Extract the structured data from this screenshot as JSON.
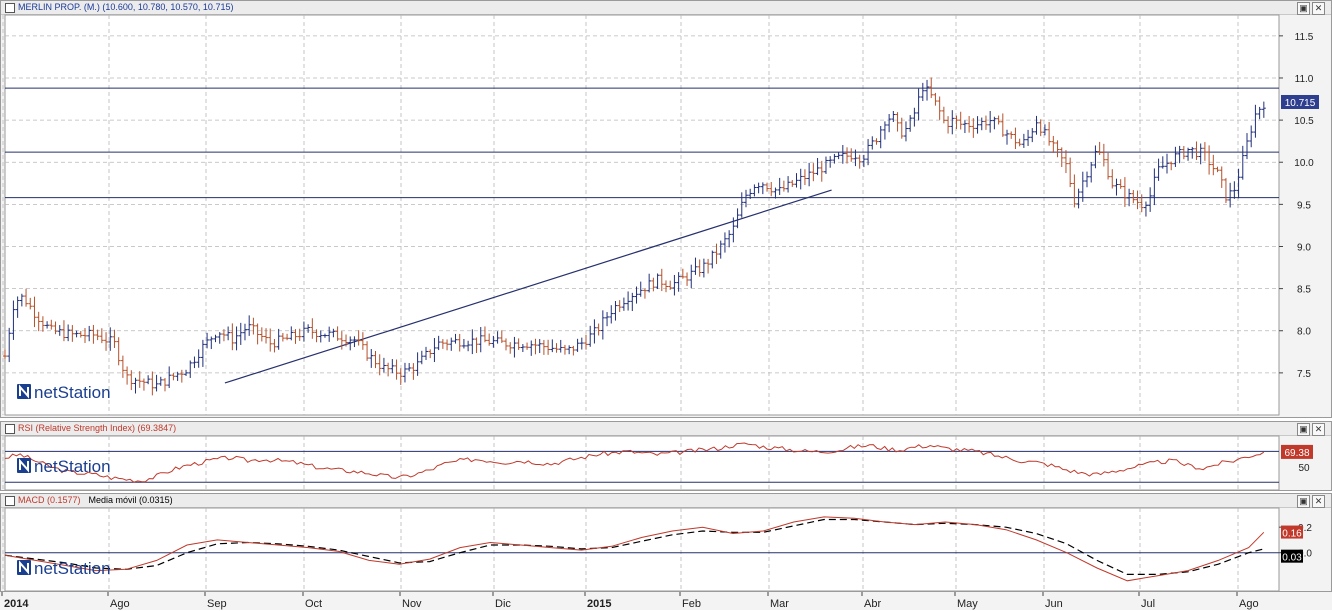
{
  "price_panel": {
    "header": "MERLIN PROP. (M.) (10.600, 10.780, 10.570, 10.715)",
    "last_label": "10.715",
    "logo": "netStation",
    "win_buttons": [
      "▣",
      "✕"
    ]
  },
  "rsi_panel": {
    "header": "RSI (Relative Strength Index) (69.3847)",
    "last_label": "69.38",
    "logo": "netStation",
    "win_buttons": [
      "▣",
      "✕"
    ]
  },
  "macd_panel": {
    "header": "MACD (0.1577)",
    "header_extra": "Media móvil (0.0315)",
    "last_label_macd": "0.16",
    "last_label_signal": "0.03",
    "logo": "netStation",
    "win_buttons": [
      "▣",
      "✕"
    ]
  },
  "colors": {
    "up": "#1f2f7a",
    "down": "#b5502a",
    "rsi_line": "#c0392b",
    "macd_line": "#c0392b",
    "signal_line": "#000000",
    "grid": "#b8b8b8",
    "hline": "#26306e",
    "label_blue": "#2e3f8f",
    "label_red": "#c0392b"
  },
  "chart_data": [
    {
      "type": "ohlc",
      "title": "MERLIN PROP. (M.)",
      "last_ohlc": {
        "open": 10.6,
        "high": 10.78,
        "low": 10.57,
        "close": 10.715
      },
      "ylim": [
        7.0,
        11.7
      ],
      "y_ticks": [
        7.5,
        8.0,
        8.5,
        9.0,
        9.5,
        10.0,
        10.5,
        11.0,
        11.5
      ],
      "x_ticks": [
        "2014",
        "Ago",
        "Sep",
        "Oct",
        "Nov",
        "Dic",
        "2015",
        "Feb",
        "Mar",
        "Abr",
        "May",
        "Jun",
        "Jul",
        "Ago"
      ],
      "horizontal_levels": [
        10.88,
        10.12,
        9.58
      ],
      "trendline": {
        "from": [
          0.145,
          7.38
        ],
        "to": [
          0.545,
          9.67
        ]
      },
      "anchors": [
        [
          0.0,
          7.7
        ],
        [
          0.006,
          8.35
        ],
        [
          0.012,
          8.4
        ],
        [
          0.02,
          8.2
        ],
        [
          0.03,
          8.0
        ],
        [
          0.045,
          7.95
        ],
        [
          0.06,
          7.95
        ],
        [
          0.072,
          7.85
        ],
        [
          0.08,
          7.45
        ],
        [
          0.09,
          7.4
        ],
        [
          0.1,
          7.35
        ],
        [
          0.11,
          7.45
        ],
        [
          0.12,
          7.55
        ],
        [
          0.13,
          7.8
        ],
        [
          0.14,
          8.0
        ],
        [
          0.15,
          7.9
        ],
        [
          0.16,
          8.05
        ],
        [
          0.175,
          7.85
        ],
        [
          0.185,
          7.9
        ],
        [
          0.2,
          8.0
        ],
        [
          0.215,
          7.95
        ],
        [
          0.23,
          7.9
        ],
        [
          0.24,
          7.7
        ],
        [
          0.25,
          7.55
        ],
        [
          0.262,
          7.5
        ],
        [
          0.272,
          7.6
        ],
        [
          0.285,
          7.85
        ],
        [
          0.3,
          7.88
        ],
        [
          0.315,
          7.88
        ],
        [
          0.33,
          7.85
        ],
        [
          0.345,
          7.85
        ],
        [
          0.36,
          7.8
        ],
        [
          0.37,
          7.75
        ],
        [
          0.38,
          7.85
        ],
        [
          0.39,
          8.0
        ],
        [
          0.4,
          8.25
        ],
        [
          0.41,
          8.4
        ],
        [
          0.42,
          8.5
        ],
        [
          0.43,
          8.6
        ],
        [
          0.44,
          8.55
        ],
        [
          0.45,
          8.65
        ],
        [
          0.46,
          8.75
        ],
        [
          0.47,
          8.95
        ],
        [
          0.48,
          9.2
        ],
        [
          0.488,
          9.6
        ],
        [
          0.495,
          9.75
        ],
        [
          0.5,
          9.75
        ],
        [
          0.51,
          9.65
        ],
        [
          0.52,
          9.75
        ],
        [
          0.53,
          9.85
        ],
        [
          0.54,
          9.95
        ],
        [
          0.55,
          10.05
        ],
        [
          0.56,
          10.1
        ],
        [
          0.565,
          10.05
        ],
        [
          0.575,
          10.3
        ],
        [
          0.58,
          10.5
        ],
        [
          0.585,
          10.55
        ],
        [
          0.59,
          10.35
        ],
        [
          0.595,
          10.4
        ],
        [
          0.6,
          10.6
        ],
        [
          0.605,
          10.9
        ],
        [
          0.61,
          10.8
        ],
        [
          0.615,
          10.65
        ],
        [
          0.62,
          10.45
        ],
        [
          0.625,
          10.5
        ],
        [
          0.63,
          10.45
        ],
        [
          0.64,
          10.45
        ],
        [
          0.65,
          10.5
        ],
        [
          0.66,
          10.35
        ],
        [
          0.67,
          10.2
        ],
        [
          0.675,
          10.3
        ],
        [
          0.68,
          10.5
        ],
        [
          0.69,
          10.2
        ],
        [
          0.7,
          9.95
        ],
        [
          0.705,
          9.55
        ],
        [
          0.71,
          9.75
        ],
        [
          0.715,
          9.95
        ],
        [
          0.72,
          10.15
        ],
        [
          0.725,
          10.0
        ],
        [
          0.73,
          9.75
        ],
        [
          0.74,
          9.6
        ],
        [
          0.75,
          9.5
        ],
        [
          0.755,
          9.6
        ],
        [
          0.76,
          9.9
        ],
        [
          0.77,
          10.05
        ],
        [
          0.78,
          10.15
        ],
        [
          0.79,
          10.1
        ],
        [
          0.8,
          9.85
        ],
        [
          0.805,
          9.6
        ],
        [
          0.81,
          9.65
        ],
        [
          0.815,
          9.95
        ],
        [
          0.82,
          10.3
        ],
        [
          0.825,
          10.6
        ],
        [
          0.83,
          10.7
        ]
      ]
    },
    {
      "type": "line",
      "title": "RSI (Relative Strength Index)",
      "last_value": 69.3847,
      "ylim": [
        20,
        90
      ],
      "y_ticks": [
        50
      ],
      "levels": [
        70,
        30
      ],
      "x": [
        0.0,
        0.01,
        0.02,
        0.03,
        0.04,
        0.05,
        0.06,
        0.07,
        0.08,
        0.09,
        0.1,
        0.11,
        0.12,
        0.13,
        0.14,
        0.15,
        0.16,
        0.17,
        0.18,
        0.19,
        0.2,
        0.21,
        0.22,
        0.23,
        0.24,
        0.25,
        0.26,
        0.27,
        0.28,
        0.29,
        0.3,
        0.31,
        0.32,
        0.33,
        0.34,
        0.35,
        0.36,
        0.37,
        0.38,
        0.39,
        0.4,
        0.41,
        0.42,
        0.43,
        0.44,
        0.45,
        0.46,
        0.47,
        0.48,
        0.49,
        0.5,
        0.51,
        0.52,
        0.53,
        0.54,
        0.55,
        0.56,
        0.57,
        0.58,
        0.59,
        0.6,
        0.61,
        0.62,
        0.63,
        0.64,
        0.65,
        0.66,
        0.67,
        0.68,
        0.69,
        0.7,
        0.71,
        0.72,
        0.73,
        0.74,
        0.75,
        0.76,
        0.77,
        0.78,
        0.79,
        0.8,
        0.81,
        0.82,
        0.83
      ],
      "values": [
        62,
        66,
        58,
        50,
        44,
        42,
        40,
        36,
        34,
        32,
        38,
        46,
        52,
        56,
        60,
        62,
        58,
        60,
        58,
        56,
        52,
        48,
        46,
        44,
        42,
        38,
        36,
        40,
        46,
        54,
        58,
        60,
        58,
        56,
        58,
        56,
        54,
        58,
        62,
        66,
        68,
        70,
        68,
        66,
        68,
        70,
        72,
        74,
        78,
        80,
        76,
        74,
        72,
        70,
        70,
        72,
        76,
        78,
        74,
        72,
        76,
        78,
        74,
        72,
        70,
        66,
        62,
        58,
        56,
        52,
        46,
        42,
        40,
        44,
        48,
        52,
        56,
        58,
        52,
        48,
        54,
        58,
        64,
        69
      ]
    },
    {
      "type": "line",
      "title": "MACD",
      "last_value": 0.1577,
      "signal_name": "Media móvil",
      "signal_last": 0.0315,
      "ylim": [
        -0.3,
        0.35
      ],
      "y_ticks": [
        0.0,
        0.2
      ],
      "zero_line": 0.0,
      "x": [
        0.0,
        0.02,
        0.04,
        0.06,
        0.08,
        0.1,
        0.12,
        0.14,
        0.16,
        0.18,
        0.2,
        0.22,
        0.24,
        0.26,
        0.28,
        0.3,
        0.32,
        0.34,
        0.36,
        0.38,
        0.4,
        0.42,
        0.44,
        0.46,
        0.48,
        0.5,
        0.52,
        0.54,
        0.56,
        0.58,
        0.6,
        0.62,
        0.64,
        0.66,
        0.68,
        0.7,
        0.72,
        0.74,
        0.76,
        0.78,
        0.8,
        0.82,
        0.83
      ],
      "macd": [
        -0.02,
        -0.06,
        -0.1,
        -0.14,
        -0.13,
        -0.06,
        0.06,
        0.1,
        0.08,
        0.06,
        0.04,
        0.01,
        -0.06,
        -0.09,
        -0.05,
        0.04,
        0.08,
        0.06,
        0.04,
        0.02,
        0.05,
        0.12,
        0.17,
        0.2,
        0.15,
        0.17,
        0.24,
        0.28,
        0.27,
        0.24,
        0.22,
        0.24,
        0.22,
        0.18,
        0.1,
        0.0,
        -0.12,
        -0.22,
        -0.18,
        -0.14,
        -0.06,
        0.04,
        0.16
      ],
      "signal": [
        -0.02,
        -0.05,
        -0.08,
        -0.12,
        -0.13,
        -0.1,
        0.0,
        0.07,
        0.08,
        0.07,
        0.05,
        0.02,
        -0.03,
        -0.08,
        -0.07,
        0.0,
        0.06,
        0.06,
        0.05,
        0.03,
        0.04,
        0.09,
        0.14,
        0.17,
        0.16,
        0.16,
        0.21,
        0.26,
        0.26,
        0.24,
        0.22,
        0.23,
        0.22,
        0.2,
        0.15,
        0.07,
        -0.06,
        -0.17,
        -0.17,
        -0.15,
        -0.09,
        0.0,
        0.03
      ]
    }
  ]
}
